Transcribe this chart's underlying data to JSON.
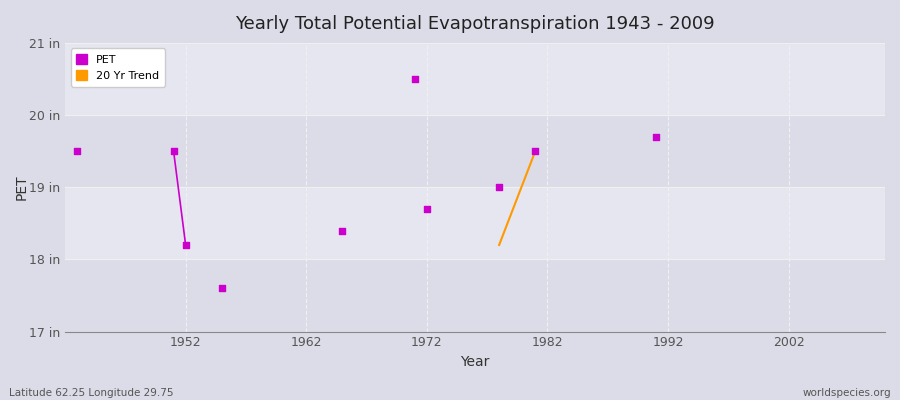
{
  "title": "Yearly Total Potential Evapotranspiration 1943 - 2009",
  "xlabel": "Year",
  "ylabel": "PET",
  "background_color": "#dcdce8",
  "plot_bg_color": "#e2e2ee",
  "grid_color": "#f5f5f5",
  "pet_color": "#cc00cc",
  "trend_color": "#ff9900",
  "x_min": 1942,
  "x_max": 2010,
  "y_min": 17,
  "y_max": 21,
  "y_ticks": [
    17,
    18,
    19,
    20,
    21
  ],
  "y_tick_labels": [
    "17 in",
    "18 in",
    "19 in",
    "20 in",
    "21 in"
  ],
  "x_ticks": [
    1952,
    1962,
    1972,
    1982,
    1992,
    2002
  ],
  "pet_years": [
    1943,
    1951,
    1952,
    1955,
    1965,
    1971,
    1972,
    1978,
    1981,
    1991
  ],
  "pet_values": [
    19.5,
    19.5,
    18.2,
    17.6,
    18.4,
    20.5,
    18.7,
    19.0,
    19.5,
    19.7
  ],
  "line_segments": [
    [
      1951,
      19.5,
      1952,
      18.2
    ]
  ],
  "trend_line": [
    1978,
    18.2,
    1981,
    19.5
  ],
  "footnote_left": "Latitude 62.25 Longitude 29.75",
  "footnote_right": "worldspecies.org",
  "legend_pet_label": "PET",
  "legend_trend_label": "20 Yr Trend",
  "band_y": [
    17,
    18,
    19,
    20,
    21
  ],
  "band_colors": [
    "#dcdce8",
    "#e6e6f0",
    "#dcdce8",
    "#e6e6f0"
  ]
}
